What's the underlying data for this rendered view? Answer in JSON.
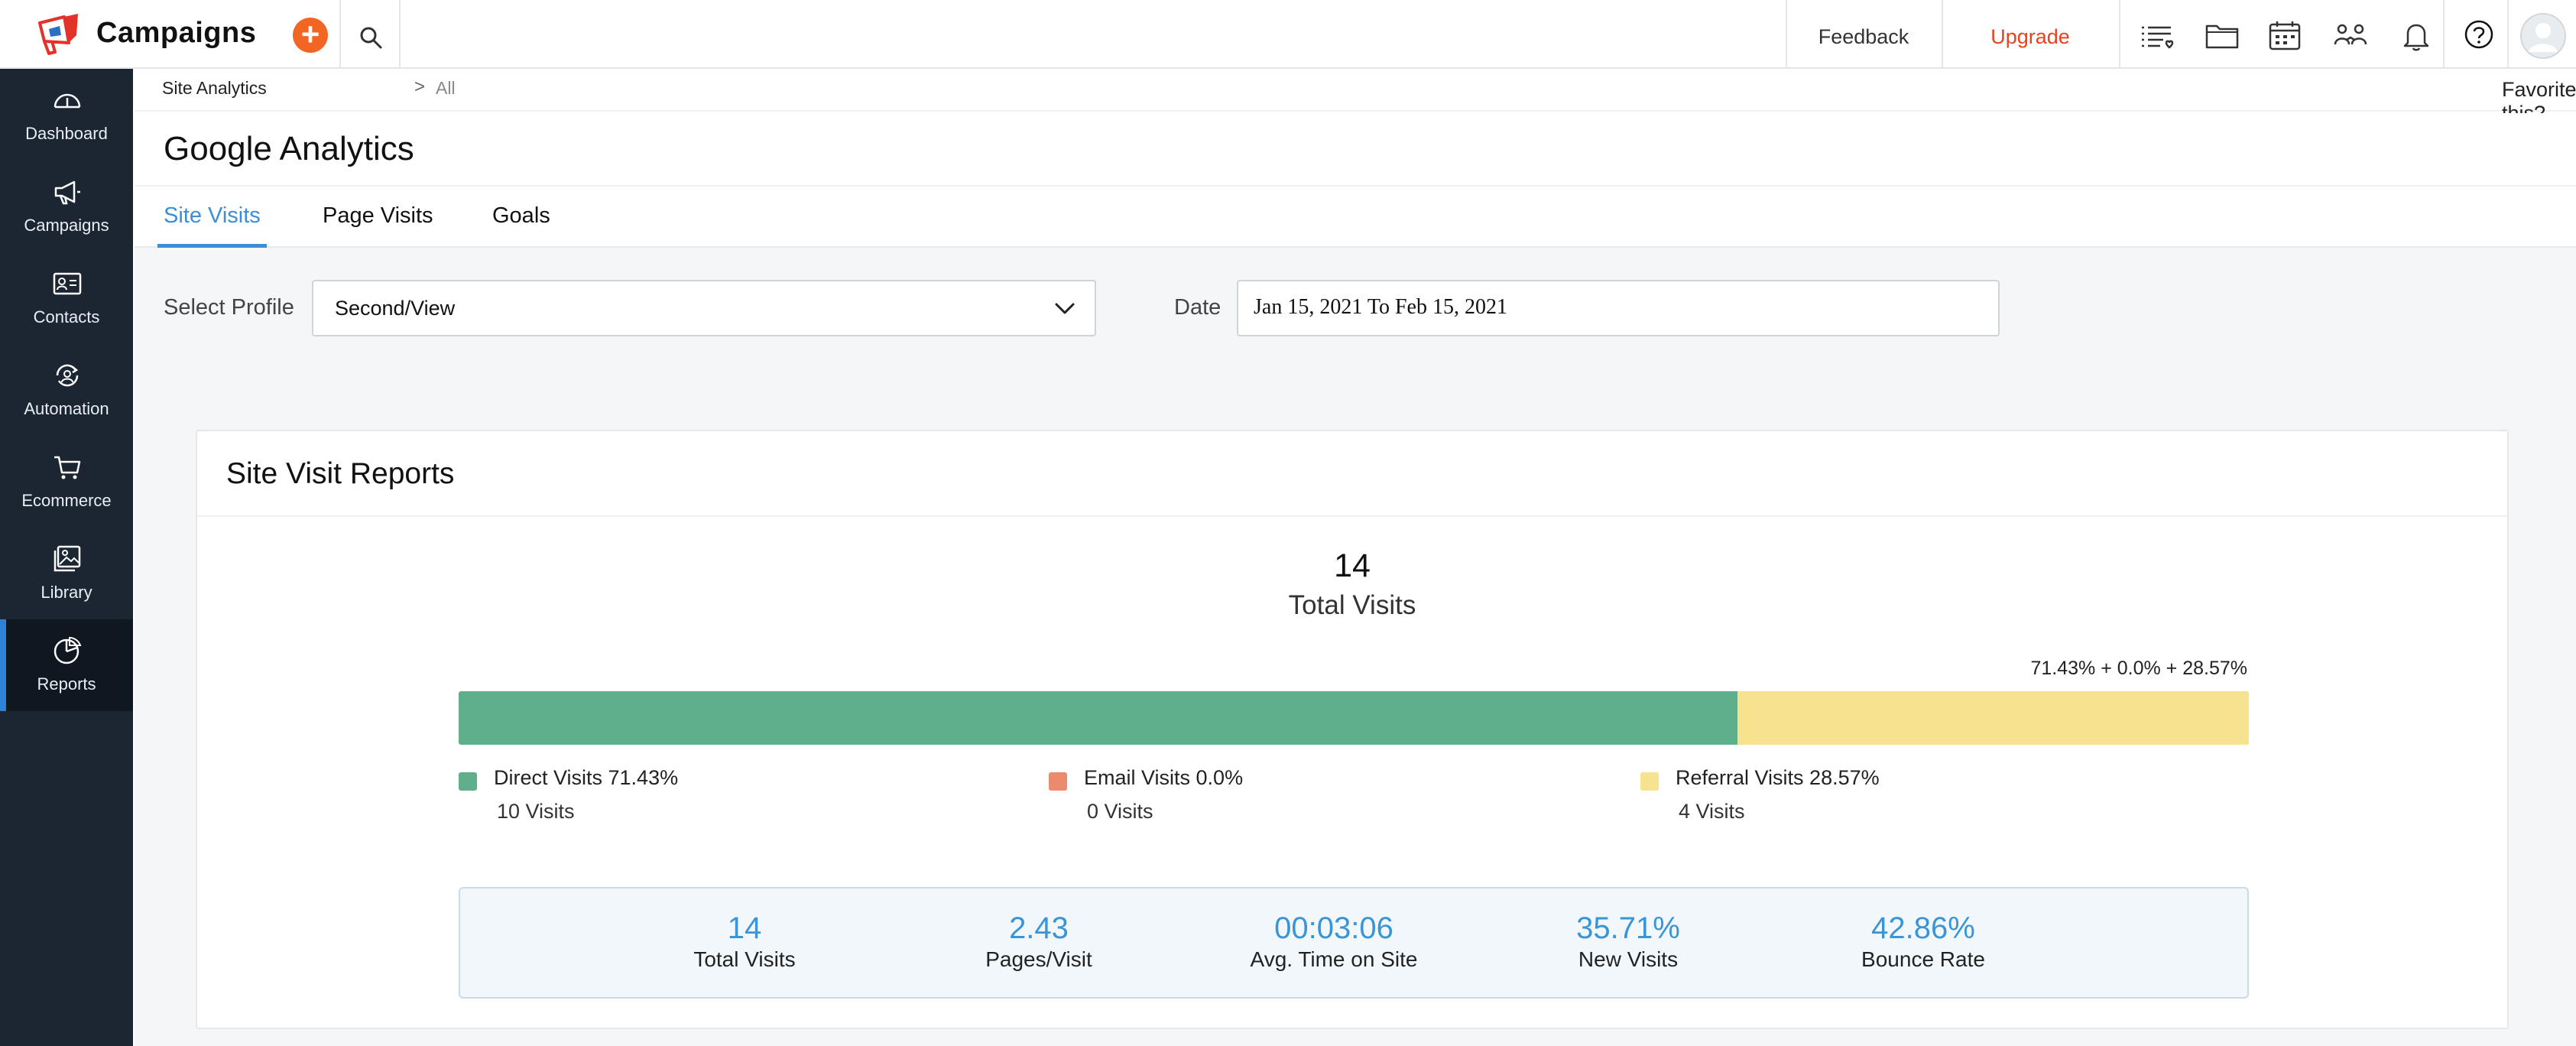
{
  "app": {
    "title": "Campaigns"
  },
  "topbar": {
    "add_icon": "plus-circle",
    "feedback_label": "Feedback",
    "upgrade_label": "Upgrade",
    "icons": [
      "search-icon",
      "list-icon",
      "folder-icon",
      "calendar-icon",
      "team-icon",
      "bell-icon",
      "help-icon",
      "avatar"
    ]
  },
  "sidebar": {
    "items": [
      {
        "label": "Dashboard",
        "icon": "dashboard-icon"
      },
      {
        "label": "Campaigns",
        "icon": "megaphone-icon"
      },
      {
        "label": "Contacts",
        "icon": "contact-card-icon"
      },
      {
        "label": "Automation",
        "icon": "automation-icon"
      },
      {
        "label": "Ecommerce",
        "icon": "cart-icon"
      },
      {
        "label": "Library",
        "icon": "image-library-icon"
      },
      {
        "label": "Reports",
        "icon": "pie-chart-icon",
        "active": true
      }
    ]
  },
  "breadcrumb": {
    "parent": "Site Analytics",
    "separator": ">",
    "current": "All"
  },
  "favorite": {
    "label": "Favorite this?"
  },
  "page": {
    "title": "Google Analytics"
  },
  "tabs": [
    {
      "label": "Site Visits",
      "active": true
    },
    {
      "label": "Page Visits"
    },
    {
      "label": "Goals"
    }
  ],
  "filters": {
    "profile_label": "Select Profile",
    "profile_value": "Second/View",
    "date_label": "Date",
    "date_value": "Jan 15, 2021 To Feb 15, 2021"
  },
  "report": {
    "title": "Site Visit Reports",
    "total_value": "14",
    "total_label": "Total Visits",
    "percent_summary": "71.43% + 0.0% + 28.57%",
    "segments": [
      {
        "name": "Direct Visits 71.43%",
        "visits": "10 Visits",
        "percent": 71.43,
        "color": "#5fb08a"
      },
      {
        "name": "Email Visits 0.0%",
        "visits": "0 Visits",
        "percent": 0.0,
        "color": "#ec8a6e"
      },
      {
        "name": "Referral Visits 28.57%",
        "visits": "4 Visits",
        "percent": 28.57,
        "color": "#f6e28f"
      }
    ],
    "stats": [
      {
        "value": "14",
        "label": "Total Visits"
      },
      {
        "value": "2.43",
        "label": "Pages/Visit"
      },
      {
        "value": "00:03:06",
        "label": "Avg. Time on Site"
      },
      {
        "value": "35.71%",
        "label": "New Visits"
      },
      {
        "value": "42.86%",
        "label": "Bounce Rate"
      }
    ]
  }
}
